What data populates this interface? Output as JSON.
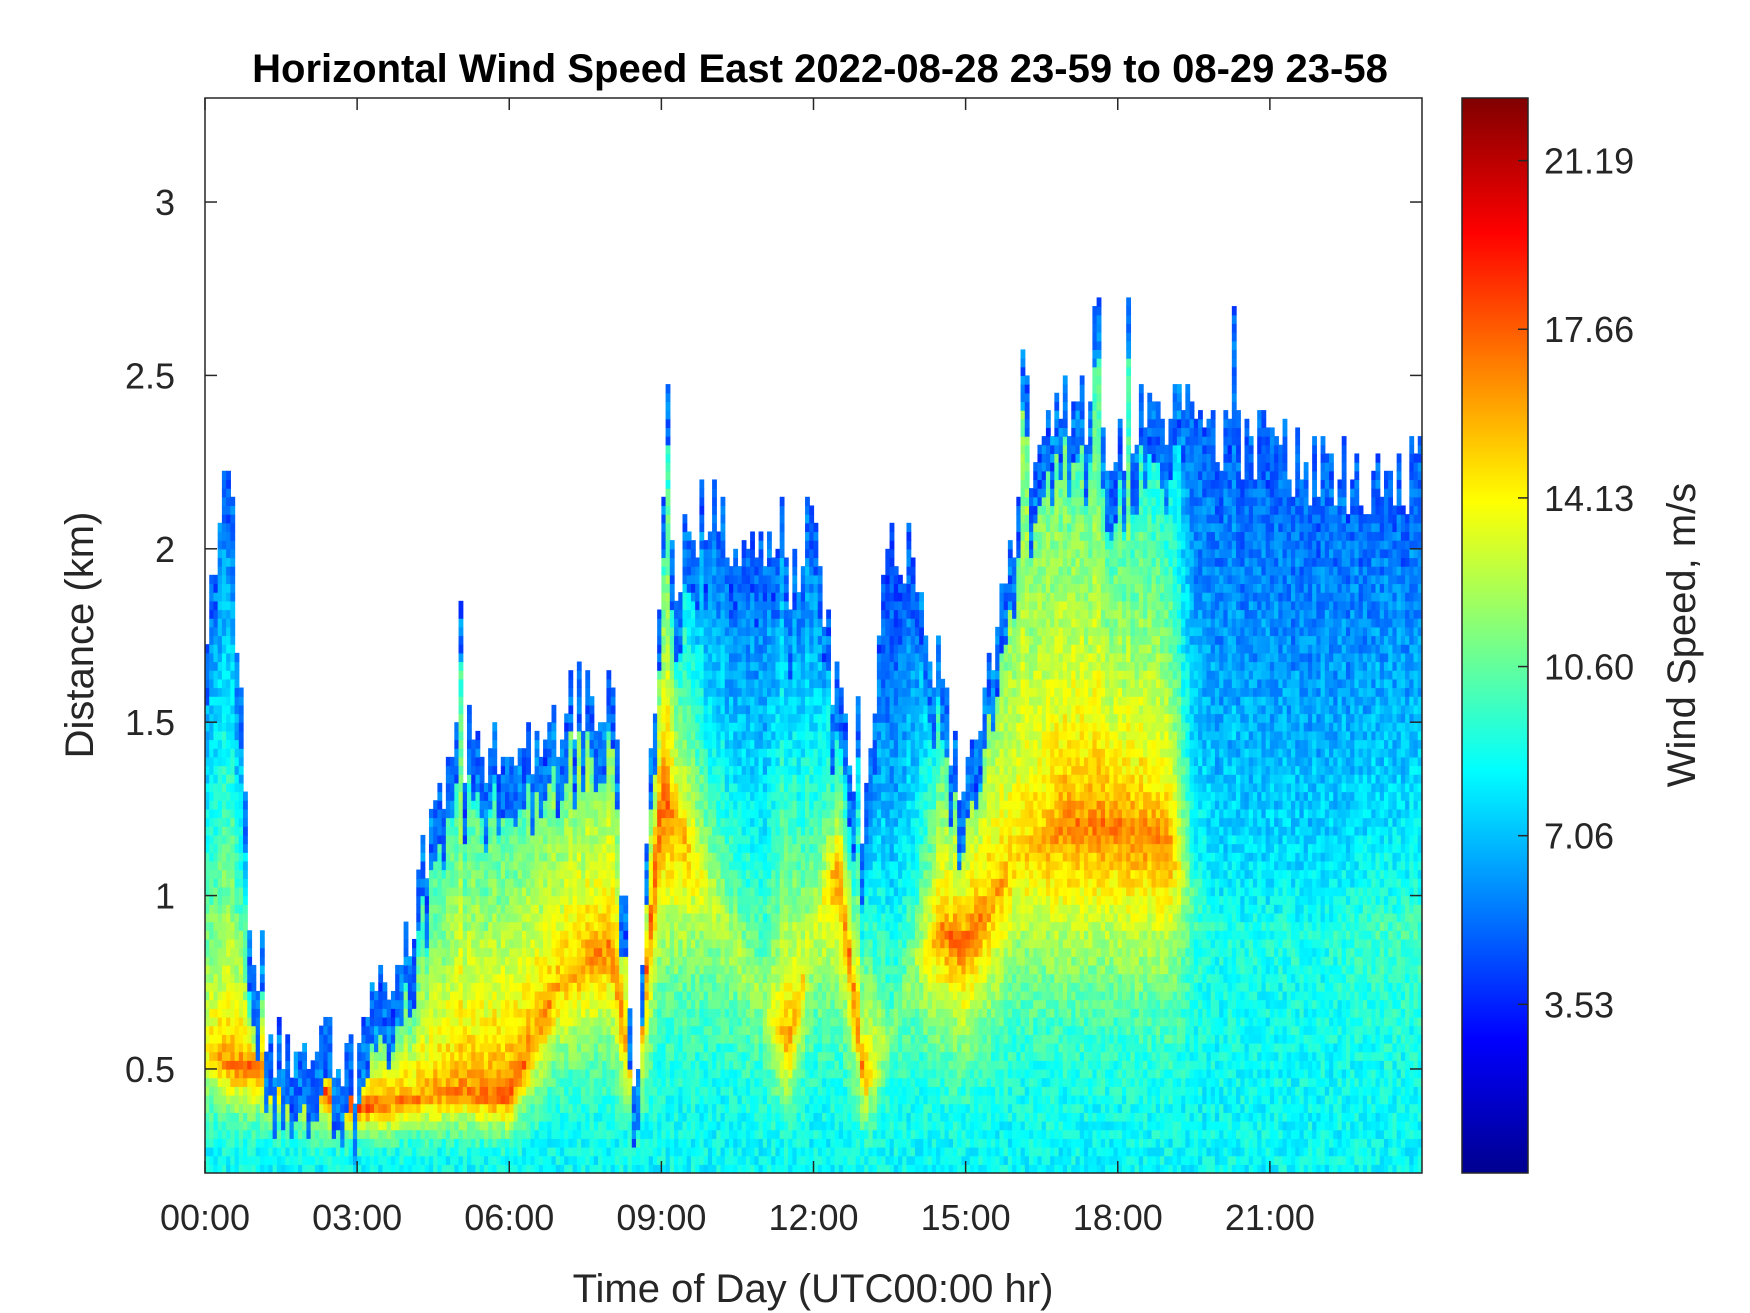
{
  "chart_data": {
    "type": "heatmap",
    "title": "Horizontal Wind Speed East 2022-08-28 23-59 to 08-29 23-58",
    "xlabel": "Time of Day (UTC00:00 hr)",
    "ylabel": "Distance (km)",
    "colorbar_label": "Wind Speed, m/s",
    "x_ticks": [
      "00:00",
      "03:00",
      "06:00",
      "09:00",
      "12:00",
      "15:00",
      "18:00",
      "21:00"
    ],
    "x_tick_hours": [
      0,
      3,
      6,
      9,
      12,
      15,
      18,
      21
    ],
    "xlim_hours": [
      0,
      24
    ],
    "y_ticks": [
      0.5,
      1,
      1.5,
      2,
      2.5,
      3
    ],
    "y_tick_labels": [
      "0.5",
      "1",
      "1.5",
      "2",
      "2.5",
      "3"
    ],
    "ylim": [
      0.2,
      3.3
    ],
    "colorbar_ticks": [
      3.53,
      7.06,
      10.6,
      14.13,
      17.66,
      21.19
    ],
    "colorbar_tick_labels": [
      "3.53",
      "7.06",
      "10.60",
      "14.13",
      "17.66",
      "21.19"
    ],
    "colorbar_range": [
      0,
      22.5
    ],
    "colormap": "jet",
    "grid": false,
    "profile": {
      "hours": [
        0,
        0.5,
        1,
        2,
        3,
        4,
        5,
        6,
        7,
        8,
        8.5,
        9,
        10,
        11,
        11.5,
        12,
        12.5,
        13,
        13.5,
        14,
        14.5,
        15,
        16,
        17,
        18,
        19,
        19.5,
        20,
        21,
        22,
        23,
        24
      ],
      "top_km": [
        1.8,
        2.2,
        0.6,
        0.55,
        0.5,
        0.9,
        1.4,
        1.45,
        1.5,
        1.6,
        0.45,
        1.9,
        2.1,
        2.0,
        1.9,
        2.1,
        1.5,
        1.2,
        2.0,
        2.0,
        1.6,
        1.3,
        2.1,
        2.4,
        2.3,
        2.4,
        2.4,
        2.3,
        2.3,
        2.2,
        2.2,
        2.2
      ],
      "jet_km": [
        0.55,
        0.5,
        0.5,
        0.45,
        0.38,
        0.4,
        0.42,
        0.4,
        0.75,
        0.85,
        0.4,
        1.3,
        1.0,
        0.7,
        0.55,
        0.9,
        1.1,
        0.45,
        0.6,
        0.8,
        0.9,
        0.85,
        1.1,
        1.2,
        1.2,
        1.15,
        1.0,
        0.9,
        0.9,
        0.9,
        0.9,
        0.9
      ],
      "jet_speed": [
        15,
        17,
        18,
        18,
        19,
        17,
        17,
        18,
        16,
        17,
        17,
        18,
        13,
        12,
        17,
        13,
        17,
        17,
        11,
        12,
        17,
        18,
        15,
        17,
        17,
        17,
        10,
        9,
        9,
        9,
        10,
        10
      ],
      "upper_speed": [
        6,
        5,
        6,
        6,
        6,
        8,
        9,
        9,
        10,
        10,
        10,
        9,
        5,
        5,
        6,
        5,
        6,
        6,
        4,
        5,
        8,
        10,
        11,
        10,
        9,
        8,
        5,
        5,
        5,
        5,
        5,
        5
      ]
    }
  }
}
